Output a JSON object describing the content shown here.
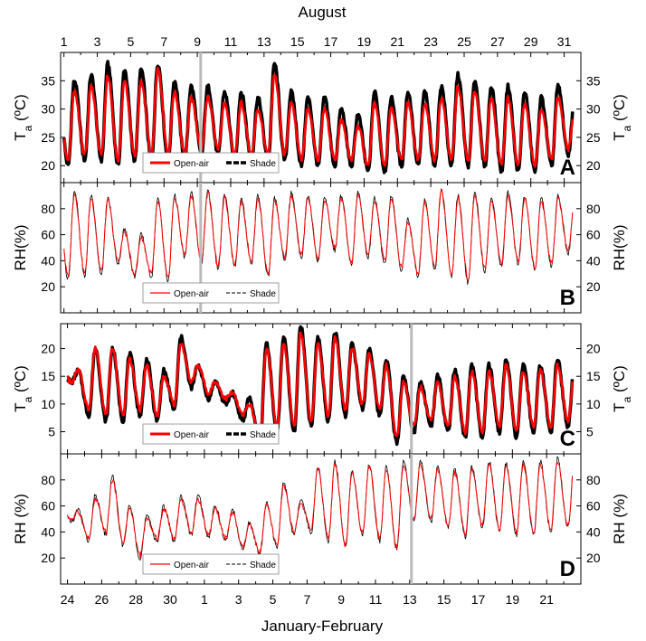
{
  "figure": {
    "top_axis_title": "August",
    "bottom_axis_title": "January-February",
    "top_ticks": [
      "1",
      "3",
      "5",
      "7",
      "9",
      "11",
      "13",
      "15",
      "17",
      "19",
      "21",
      "23",
      "25",
      "27",
      "29",
      "31"
    ],
    "bottom_ticks": [
      "24",
      "26",
      "28",
      "30",
      "1",
      "3",
      "5",
      "7",
      "9",
      "11",
      "13",
      "15",
      "17",
      "19",
      "21"
    ],
    "colors": {
      "open_air": "#ff0000",
      "shade": "#000000",
      "marker": "#bbbbbb"
    }
  },
  "chart_data": [
    {
      "type": "line",
      "panel": "A",
      "period": "August",
      "ylabel": "T",
      "ylabel_sub": "a",
      "ylabel_unit": " (ºC)",
      "ylim": [
        17,
        40
      ],
      "yticks": [
        "20",
        "25",
        "30",
        "35"
      ],
      "xlim": [
        0.8,
        32.0
      ],
      "x_start": 1,
      "x_end": 31.5,
      "marker_x": 9.2,
      "legend": {
        "open_air": "Open-air",
        "shade": "Shade",
        "position": "bottom-center"
      },
      "series": [
        {
          "name": "Open-air",
          "daily_max": [
            33,
            34,
            36,
            35,
            35,
            37,
            33,
            32,
            32,
            31,
            31,
            30,
            36,
            31,
            30,
            30,
            28,
            27,
            31,
            30,
            31,
            31,
            32,
            34,
            33,
            32,
            32,
            31,
            30,
            32,
            30
          ],
          "daily_min": [
            21,
            22,
            22,
            21,
            22,
            22,
            22,
            22,
            23,
            23,
            22,
            22,
            22,
            22,
            21,
            21,
            21,
            21,
            20,
            20,
            21,
            21,
            21,
            21,
            21,
            21,
            20,
            20,
            20,
            21,
            23
          ]
        },
        {
          "name": "Shade",
          "daily_max": [
            35,
            36,
            38,
            37,
            37,
            38,
            35,
            34,
            34,
            33,
            33,
            32,
            38,
            33,
            32,
            32,
            30,
            29,
            33,
            32,
            33,
            33,
            34,
            36,
            35,
            34,
            34,
            33,
            32,
            34,
            32
          ],
          "daily_min": [
            20,
            21,
            21,
            20,
            21,
            21,
            21,
            21,
            22,
            22,
            21,
            21,
            21,
            21,
            20,
            20,
            20,
            20,
            19,
            19,
            20,
            20,
            20,
            20,
            20,
            20,
            19,
            19,
            19,
            20,
            22
          ]
        }
      ]
    },
    {
      "type": "line",
      "panel": "B",
      "period": "August",
      "ylabel": "RH(%)",
      "ylim": [
        0,
        100
      ],
      "yticks": [
        "20",
        "40",
        "60",
        "80"
      ],
      "xlim": [
        0.8,
        32.0
      ],
      "x_start": 1,
      "x_end": 31.5,
      "marker_x": 9.2,
      "legend": {
        "open_air": "Open-air",
        "shade": "Shade",
        "position": "bottom-center"
      },
      "series": [
        {
          "name": "Open-air",
          "daily_max": [
            92,
            88,
            86,
            62,
            58,
            85,
            88,
            90,
            92,
            88,
            85,
            88,
            86,
            90,
            88,
            86,
            88,
            90,
            86,
            88,
            70,
            85,
            93,
            88,
            90,
            86,
            90,
            88,
            86,
            88,
            87
          ],
          "daily_min": [
            28,
            30,
            32,
            40,
            30,
            30,
            26,
            45,
            40,
            36,
            38,
            40,
            30,
            42,
            45,
            42,
            50,
            38,
            45,
            40,
            35,
            30,
            35,
            30,
            25,
            34,
            38,
            40,
            35,
            38,
            48
          ]
        },
        {
          "name": "Shade",
          "daily_max": [
            94,
            90,
            88,
            64,
            60,
            87,
            90,
            92,
            94,
            90,
            87,
            90,
            88,
            92,
            90,
            88,
            90,
            92,
            88,
            90,
            72,
            87,
            95,
            90,
            92,
            88,
            92,
            90,
            88,
            90,
            89
          ],
          "daily_min": [
            26,
            28,
            30,
            38,
            28,
            28,
            24,
            43,
            38,
            34,
            36,
            38,
            28,
            40,
            43,
            40,
            48,
            36,
            43,
            38,
            33,
            28,
            33,
            28,
            23,
            32,
            36,
            38,
            33,
            36,
            46
          ]
        }
      ]
    },
    {
      "type": "line",
      "panel": "C",
      "period": "January-February",
      "ylabel": "T",
      "ylabel_sub": "a",
      "ylabel_unit": " (ºC)",
      "ylim": [
        1,
        24.5
      ],
      "yticks": [
        "5",
        "10",
        "15",
        "20"
      ],
      "xlim": [
        23.6,
        54.0
      ],
      "x_start": 24,
      "x_end": 53.5,
      "marker_x": 44.1,
      "legend": {
        "open_air": "Open-air",
        "shade": "Shade",
        "position": "bottom-center"
      },
      "series": [
        {
          "name": "Open-air",
          "daily_max": [
            16,
            20,
            20,
            18,
            17,
            15,
            21,
            17,
            14,
            12,
            10,
            20,
            21,
            23,
            21,
            22,
            20,
            19,
            17,
            14,
            13,
            14,
            15,
            16,
            16,
            17,
            16,
            16,
            17,
            16
          ],
          "daily_min": [
            14,
            9,
            8,
            8,
            9,
            8,
            10,
            14,
            12,
            11,
            8,
            4,
            6,
            6,
            7,
            8,
            9,
            10,
            9,
            4,
            6,
            7,
            6,
            5,
            5,
            6,
            5,
            6,
            6,
            7
          ]
        },
        {
          "name": "Shade",
          "daily_max": [
            16,
            20,
            20,
            19,
            18,
            16,
            22,
            17,
            14,
            12,
            11,
            21,
            22,
            24,
            22,
            23,
            21,
            20,
            18,
            15,
            14,
            15,
            16,
            17,
            17,
            18,
            17,
            17,
            18,
            17
          ],
          "daily_min": [
            14,
            8,
            7,
            7,
            8,
            7,
            9,
            13,
            11,
            10,
            7,
            3,
            5,
            5,
            6,
            7,
            8,
            9,
            8,
            3,
            5,
            6,
            5,
            4,
            4,
            5,
            4,
            5,
            5,
            6
          ]
        }
      ]
    },
    {
      "type": "line",
      "panel": "D",
      "period": "January-February",
      "ylabel": "RH (%)",
      "ylim": [
        0,
        100
      ],
      "yticks": [
        "20",
        "40",
        "60",
        "80"
      ],
      "xlim": [
        23.6,
        54.0
      ],
      "x_start": 24,
      "x_end": 53.5,
      "marker_x": 44.1,
      "legend": {
        "open_air": "Open-air",
        "shade": "Shade",
        "position": "bottom-center"
      },
      "series": [
        {
          "name": "Open-air",
          "daily_max": [
            55,
            65,
            80,
            58,
            50,
            58,
            65,
            65,
            58,
            55,
            45,
            60,
            75,
            62,
            88,
            92,
            85,
            90,
            88,
            92,
            92,
            88,
            85,
            88,
            92,
            90,
            92,
            92,
            94,
            92
          ],
          "daily_min": [
            50,
            35,
            40,
            32,
            22,
            35,
            35,
            40,
            38,
            35,
            28,
            25,
            30,
            40,
            42,
            35,
            30,
            40,
            35,
            28,
            50,
            50,
            45,
            38,
            45,
            42,
            40,
            40,
            42,
            45
          ]
        },
        {
          "name": "Shade",
          "daily_max": [
            57,
            68,
            83,
            60,
            52,
            60,
            67,
            68,
            60,
            57,
            47,
            62,
            78,
            64,
            90,
            94,
            87,
            92,
            90,
            94,
            94,
            90,
            88,
            90,
            94,
            92,
            94,
            94,
            96,
            94
          ],
          "daily_min": [
            48,
            33,
            38,
            30,
            20,
            33,
            33,
            38,
            36,
            33,
            26,
            23,
            28,
            38,
            40,
            33,
            28,
            38,
            33,
            26,
            48,
            48,
            43,
            36,
            43,
            40,
            38,
            38,
            40,
            43
          ]
        }
      ]
    }
  ]
}
